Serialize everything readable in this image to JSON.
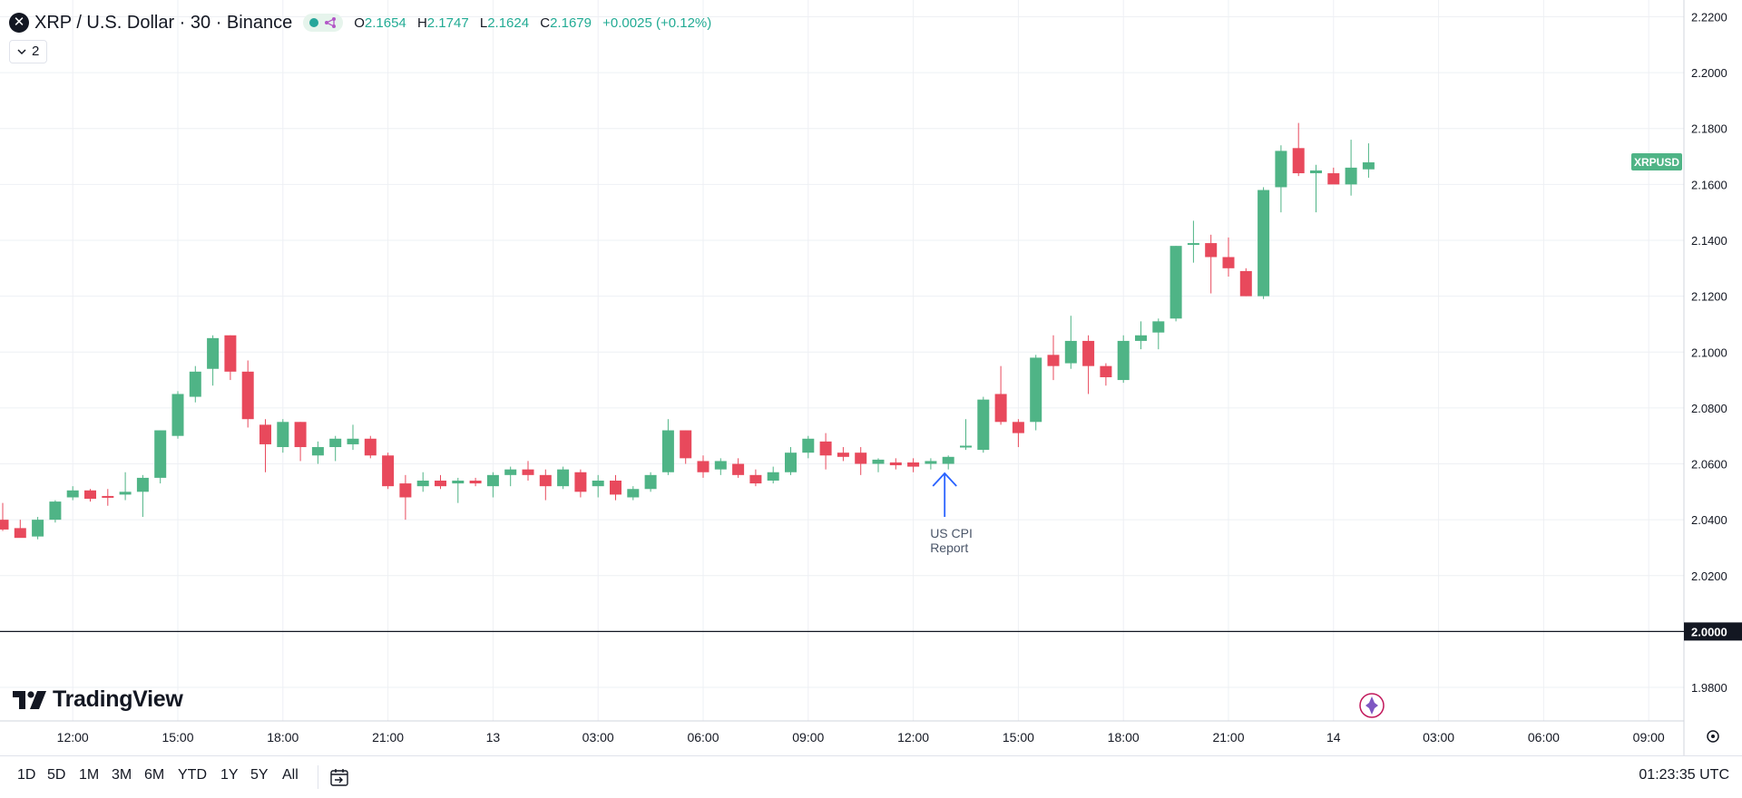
{
  "header": {
    "symbol_icon_text": "✕",
    "title": "XRP / U.S. Dollar · 30 · Binance",
    "ohlc": {
      "o_label": "O",
      "o": "2.1654",
      "h_label": "H",
      "h": "2.1747",
      "l_label": "L",
      "l": "2.1624",
      "c_label": "C",
      "c": "2.1679",
      "change": "+0.0025 (+0.12%)"
    },
    "indicator_toggle": "2"
  },
  "price_label": {
    "text": "XRPUSD",
    "value": 2.1679
  },
  "line_label": {
    "text": "2.0000",
    "value": 2.0
  },
  "annotation": {
    "line1": "US CPI",
    "line2": "Report",
    "candle_index": 54
  },
  "logo": {
    "text": "TradingView"
  },
  "bottom": {
    "ranges": [
      "1D",
      "5D",
      "1M",
      "3M",
      "6M",
      "YTD",
      "1Y",
      "5Y",
      "All"
    ],
    "clock": "01:23:35 UTC"
  },
  "colors": {
    "up": "#4fb486",
    "down": "#e8495c",
    "price_badge": "#4fb486",
    "arrow": "#2962ff",
    "grid": "#eef0f4"
  },
  "chart_data": {
    "type": "candlestick",
    "title": "XRP / U.S. Dollar · 30 · Binance",
    "interval": "30m",
    "ylim": [
      1.968,
      2.226
    ],
    "y_ticks": [
      "2.2200",
      "2.2000",
      "2.1800",
      "2.1600",
      "2.1400",
      "2.1200",
      "2.1000",
      "2.0800",
      "2.0600",
      "2.0400",
      "2.0200",
      "2.0000",
      "1.9800"
    ],
    "x_ticks": [
      {
        "label": "12:00",
        "index": 4
      },
      {
        "label": "15:00",
        "index": 10
      },
      {
        "label": "18:00",
        "index": 16
      },
      {
        "label": "21:00",
        "index": 22
      },
      {
        "label": "13",
        "index": 28
      },
      {
        "label": "03:00",
        "index": 34
      },
      {
        "label": "06:00",
        "index": 40
      },
      {
        "label": "09:00",
        "index": 46
      },
      {
        "label": "12:00",
        "index": 52
      },
      {
        "label": "15:00",
        "index": 58
      },
      {
        "label": "18:00",
        "index": 64
      },
      {
        "label": "21:00",
        "index": 70
      },
      {
        "label": "14",
        "index": 76
      },
      {
        "label": "03:00",
        "index": 82
      },
      {
        "label": "06:00",
        "index": 88
      },
      {
        "label": "09:00",
        "index": 94
      }
    ],
    "candles": [
      {
        "o": 2.04,
        "h": 2.046,
        "l": 2.036,
        "c": 2.0365
      },
      {
        "o": 2.037,
        "h": 2.04,
        "l": 2.034,
        "c": 2.0335
      },
      {
        "o": 2.034,
        "h": 2.041,
        "l": 2.033,
        "c": 2.04
      },
      {
        "o": 2.04,
        "h": 2.047,
        "l": 2.039,
        "c": 2.0465
      },
      {
        "o": 2.048,
        "h": 2.052,
        "l": 2.047,
        "c": 2.0505
      },
      {
        "o": 2.0505,
        "h": 2.051,
        "l": 2.0465,
        "c": 2.0475
      },
      {
        "o": 2.0485,
        "h": 2.051,
        "l": 2.045,
        "c": 2.048
      },
      {
        "o": 2.049,
        "h": 2.057,
        "l": 2.047,
        "c": 2.05
      },
      {
        "o": 2.05,
        "h": 2.056,
        "l": 2.041,
        "c": 2.055
      },
      {
        "o": 2.055,
        "h": 2.072,
        "l": 2.053,
        "c": 2.072
      },
      {
        "o": 2.07,
        "h": 2.086,
        "l": 2.069,
        "c": 2.085
      },
      {
        "o": 2.084,
        "h": 2.095,
        "l": 2.082,
        "c": 2.093
      },
      {
        "o": 2.094,
        "h": 2.106,
        "l": 2.088,
        "c": 2.105
      },
      {
        "o": 2.106,
        "h": 2.106,
        "l": 2.09,
        "c": 2.093
      },
      {
        "o": 2.093,
        "h": 2.097,
        "l": 2.073,
        "c": 2.076
      },
      {
        "o": 2.074,
        "h": 2.076,
        "l": 2.057,
        "c": 2.067
      },
      {
        "o": 2.066,
        "h": 2.076,
        "l": 2.064,
        "c": 2.075
      },
      {
        "o": 2.075,
        "h": 2.075,
        "l": 2.061,
        "c": 2.066
      },
      {
        "o": 2.063,
        "h": 2.068,
        "l": 2.06,
        "c": 2.066
      },
      {
        "o": 2.066,
        "h": 2.07,
        "l": 2.061,
        "c": 2.069
      },
      {
        "o": 2.067,
        "h": 2.074,
        "l": 2.065,
        "c": 2.069
      },
      {
        "o": 2.069,
        "h": 2.07,
        "l": 2.062,
        "c": 2.063
      },
      {
        "o": 2.063,
        "h": 2.064,
        "l": 2.051,
        "c": 2.052
      },
      {
        "o": 2.053,
        "h": 2.056,
        "l": 2.04,
        "c": 2.048
      },
      {
        "o": 2.052,
        "h": 2.057,
        "l": 2.05,
        "c": 2.054
      },
      {
        "o": 2.054,
        "h": 2.056,
        "l": 2.051,
        "c": 2.052
      },
      {
        "o": 2.053,
        "h": 2.055,
        "l": 2.046,
        "c": 2.054
      },
      {
        "o": 2.054,
        "h": 2.055,
        "l": 2.052,
        "c": 2.053
      },
      {
        "o": 2.052,
        "h": 2.057,
        "l": 2.048,
        "c": 2.056
      },
      {
        "o": 2.056,
        "h": 2.059,
        "l": 2.052,
        "c": 2.058
      },
      {
        "o": 2.058,
        "h": 2.061,
        "l": 2.054,
        "c": 2.056
      },
      {
        "o": 2.056,
        "h": 2.058,
        "l": 2.047,
        "c": 2.052
      },
      {
        "o": 2.052,
        "h": 2.059,
        "l": 2.051,
        "c": 2.058
      },
      {
        "o": 2.057,
        "h": 2.058,
        "l": 2.048,
        "c": 2.05
      },
      {
        "o": 2.052,
        "h": 2.056,
        "l": 2.048,
        "c": 2.054
      },
      {
        "o": 2.054,
        "h": 2.056,
        "l": 2.047,
        "c": 2.049
      },
      {
        "o": 2.048,
        "h": 2.052,
        "l": 2.047,
        "c": 2.051
      },
      {
        "o": 2.051,
        "h": 2.057,
        "l": 2.05,
        "c": 2.056
      },
      {
        "o": 2.057,
        "h": 2.076,
        "l": 2.056,
        "c": 2.072
      },
      {
        "o": 2.072,
        "h": 2.072,
        "l": 2.06,
        "c": 2.062
      },
      {
        "o": 2.061,
        "h": 2.063,
        "l": 2.055,
        "c": 2.057
      },
      {
        "o": 2.058,
        "h": 2.062,
        "l": 2.056,
        "c": 2.061
      },
      {
        "o": 2.06,
        "h": 2.062,
        "l": 2.055,
        "c": 2.056
      },
      {
        "o": 2.056,
        "h": 2.058,
        "l": 2.052,
        "c": 2.053
      },
      {
        "o": 2.054,
        "h": 2.059,
        "l": 2.053,
        "c": 2.057
      },
      {
        "o": 2.057,
        "h": 2.066,
        "l": 2.056,
        "c": 2.064
      },
      {
        "o": 2.064,
        "h": 2.07,
        "l": 2.062,
        "c": 2.069
      },
      {
        "o": 2.068,
        "h": 2.071,
        "l": 2.058,
        "c": 2.063
      },
      {
        "o": 2.064,
        "h": 2.066,
        "l": 2.061,
        "c": 2.0625
      },
      {
        "o": 2.064,
        "h": 2.066,
        "l": 2.056,
        "c": 2.06
      },
      {
        "o": 2.06,
        "h": 2.062,
        "l": 2.057,
        "c": 2.0615
      },
      {
        "o": 2.0605,
        "h": 2.062,
        "l": 2.058,
        "c": 2.0595
      },
      {
        "o": 2.0605,
        "h": 2.062,
        "l": 2.057,
        "c": 2.059
      },
      {
        "o": 2.06,
        "h": 2.062,
        "l": 2.058,
        "c": 2.061
      },
      {
        "o": 2.06,
        "h": 2.063,
        "l": 2.058,
        "c": 2.0625
      },
      {
        "o": 2.066,
        "h": 2.076,
        "l": 2.065,
        "c": 2.0665
      },
      {
        "o": 2.065,
        "h": 2.084,
        "l": 2.064,
        "c": 2.083
      },
      {
        "o": 2.085,
        "h": 2.095,
        "l": 2.074,
        "c": 2.075
      },
      {
        "o": 2.075,
        "h": 2.076,
        "l": 2.066,
        "c": 2.071
      },
      {
        "o": 2.075,
        "h": 2.099,
        "l": 2.072,
        "c": 2.098
      },
      {
        "o": 2.099,
        "h": 2.106,
        "l": 2.09,
        "c": 2.095
      },
      {
        "o": 2.096,
        "h": 2.113,
        "l": 2.094,
        "c": 2.104
      },
      {
        "o": 2.104,
        "h": 2.106,
        "l": 2.085,
        "c": 2.095
      },
      {
        "o": 2.095,
        "h": 2.096,
        "l": 2.088,
        "c": 2.091
      },
      {
        "o": 2.09,
        "h": 2.106,
        "l": 2.089,
        "c": 2.104
      },
      {
        "o": 2.104,
        "h": 2.111,
        "l": 2.101,
        "c": 2.106
      },
      {
        "o": 2.107,
        "h": 2.112,
        "l": 2.101,
        "c": 2.111
      },
      {
        "o": 2.112,
        "h": 2.138,
        "l": 2.111,
        "c": 2.138
      },
      {
        "o": 2.139,
        "h": 2.147,
        "l": 2.132,
        "c": 2.139
      },
      {
        "o": 2.139,
        "h": 2.142,
        "l": 2.121,
        "c": 2.134
      },
      {
        "o": 2.134,
        "h": 2.141,
        "l": 2.127,
        "c": 2.13
      },
      {
        "o": 2.129,
        "h": 2.13,
        "l": 2.12,
        "c": 2.12
      },
      {
        "o": 2.12,
        "h": 2.159,
        "l": 2.119,
        "c": 2.158
      },
      {
        "o": 2.159,
        "h": 2.174,
        "l": 2.15,
        "c": 2.172
      },
      {
        "o": 2.173,
        "h": 2.182,
        "l": 2.163,
        "c": 2.164
      },
      {
        "o": 2.164,
        "h": 2.167,
        "l": 2.15,
        "c": 2.165
      },
      {
        "o": 2.164,
        "h": 2.166,
        "l": 2.161,
        "c": 2.16
      },
      {
        "o": 2.16,
        "h": 2.176,
        "l": 2.156,
        "c": 2.166
      },
      {
        "o": 2.1654,
        "h": 2.1747,
        "l": 2.1624,
        "c": 2.1679
      }
    ]
  }
}
